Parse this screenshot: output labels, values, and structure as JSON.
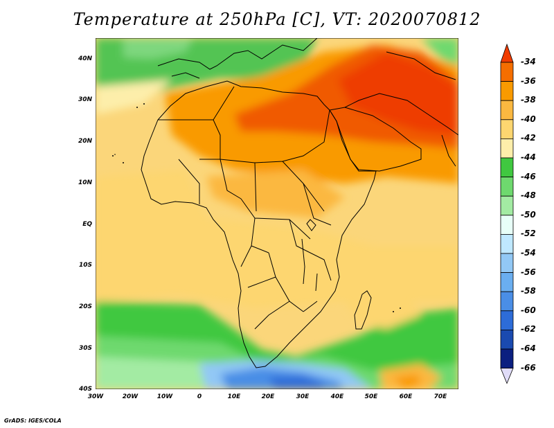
{
  "title": "Temperature at 250hPa [C], VT: 2020070812",
  "credit": "GrADS: IGES/COLA",
  "map": {
    "projection": "lat-lon",
    "lon_range": [
      -30,
      75
    ],
    "lat_range": [
      -40,
      45
    ],
    "variable": "temperature",
    "level": "250hPa",
    "units": "C",
    "valid_time": "2020070812",
    "lat_ticks": [
      "40N",
      "30N",
      "20N",
      "10N",
      "EQ",
      "10S",
      "20S",
      "30S",
      "40S"
    ],
    "lon_ticks": [
      "30W",
      "20W",
      "10W",
      "0",
      "10E",
      "20E",
      "30E",
      "40E",
      "50E",
      "60E",
      "70E"
    ]
  },
  "colorbar": {
    "labels": [
      "-34",
      "-36",
      "-38",
      "-40",
      "-42",
      "-44",
      "-46",
      "-48",
      "-50",
      "-52",
      "-54",
      "-56",
      "-58",
      "-60",
      "-62",
      "-64",
      "-66"
    ],
    "colors": [
      "#f03c00",
      "#f56e00",
      "#f99a00",
      "#fbb840",
      "#fdd670",
      "#fdeeaa",
      "#40c840",
      "#6ed96e",
      "#a3eba3",
      "#e8fff8",
      "#bfe8ff",
      "#92c8f5",
      "#6aaef0",
      "#4a8ee6",
      "#2d6cd8",
      "#1a4ab0",
      "#0b1f80"
    ]
  }
}
